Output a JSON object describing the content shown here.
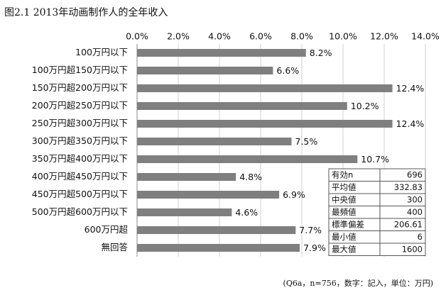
{
  "chart_data": {
    "type": "bar",
    "title": "图2.1 2013年动画制作人的全年收入",
    "categories": [
      "100万円以下",
      "100万円超150万円以下",
      "150万円超200万円以下",
      "200万円超250万円以下",
      "250万円超300万円以下",
      "300万円超350万円以下",
      "350万円超400万円以下",
      "400万円超450万円以下",
      "450万円超500万円以下",
      "500万円超600万円以下",
      "600万円超",
      "無回答"
    ],
    "values": [
      8.2,
      6.6,
      12.4,
      10.2,
      12.4,
      7.5,
      10.7,
      4.8,
      6.9,
      4.6,
      7.7,
      7.9
    ],
    "value_labels": [
      "8.2%",
      "6.6%",
      "12.4%",
      "10.2%",
      "12.4%",
      "7.5%",
      "10.7%",
      "4.8%",
      "6.9%",
      "4.6%",
      "7.7%",
      "7.9%"
    ],
    "color": "#7f7f7f",
    "xlim": [
      0,
      14
    ],
    "xticks": [
      {
        "value": 0,
        "label": "0.0%"
      },
      {
        "value": 2,
        "label": "2.0%"
      },
      {
        "value": 4,
        "label": "4.0%"
      },
      {
        "value": 6,
        "label": "6.0%"
      },
      {
        "value": 8,
        "label": "8.0%"
      },
      {
        "value": 10,
        "label": "10.0%"
      },
      {
        "value": 12,
        "label": "12.0%"
      },
      {
        "value": 14,
        "label": "14.0%"
      }
    ],
    "grid": true,
    "note": "(Q6a，n=756，数字：記入，単位：万円)"
  },
  "table": {
    "rows": [
      [
        "有効n",
        "696"
      ],
      [
        "平均値",
        "332.83"
      ],
      [
        "中央値",
        "300"
      ],
      [
        "最頻値",
        "400"
      ],
      [
        "標準偏差",
        "206.61"
      ],
      [
        "最小値",
        "6"
      ],
      [
        "最大値",
        "1600"
      ]
    ]
  }
}
